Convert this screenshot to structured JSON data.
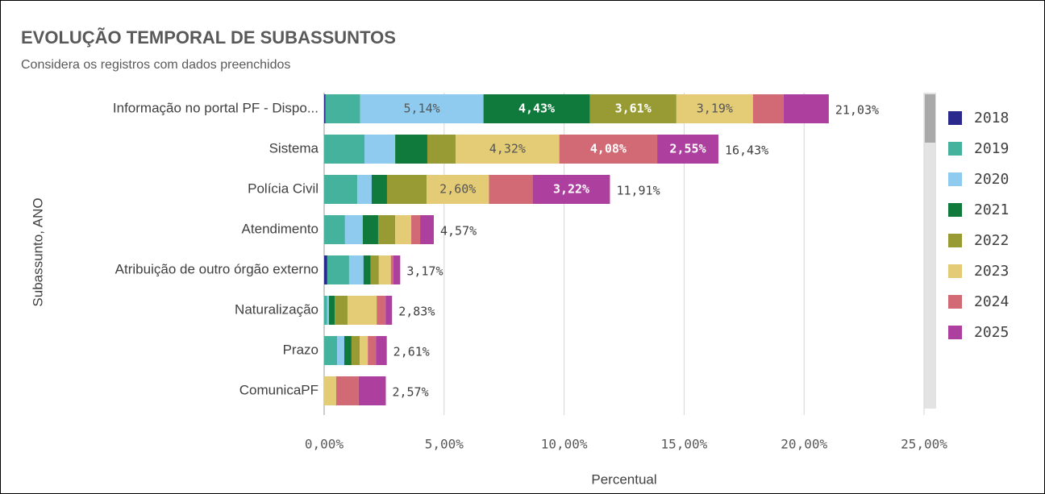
{
  "chart_data": {
    "type": "stacked-bar-horizontal",
    "title": "EVOLUÇÃO TEMPORAL DE SUBASSUNTOS",
    "subtitle": "Considera os registros com dados preenchidos",
    "x_label": "Percentual",
    "y_label": "Subassunto, ANO",
    "categories": [
      "Informação no portal PF - Dispo...",
      "Sistema",
      "Polícia Civil",
      "Atendimento",
      "Atribuição de outro órgão externo",
      "Naturalização",
      "Prazo",
      "ComunicaPF"
    ],
    "series": [
      {
        "name": "2018",
        "color": "#2b2a8c",
        "values": [
          0.05,
          0,
          0,
          0,
          0.13,
          0,
          0,
          0
        ],
        "value_labels": [
          null,
          null,
          null,
          null,
          null,
          null,
          null,
          null
        ]
      },
      {
        "name": "2019",
        "color": "#45b29d",
        "values": [
          1.45,
          1.68,
          1.38,
          0.87,
          0.91,
          0.12,
          0.54,
          0
        ],
        "value_labels": [
          null,
          null,
          null,
          null,
          null,
          null,
          null,
          null
        ]
      },
      {
        "name": "2020",
        "color": "#8ecbee",
        "values": [
          5.14,
          1.28,
          0.6,
          0.74,
          0.6,
          0.08,
          0.3,
          0
        ],
        "value_labels": [
          "5,14%",
          null,
          null,
          null,
          null,
          null,
          null,
          null
        ]
      },
      {
        "name": "2021",
        "color": "#107a3c",
        "values": [
          4.43,
          1.34,
          0.64,
          0.64,
          0.3,
          0.24,
          0.3,
          0
        ],
        "value_labels": [
          "4,43%",
          null,
          null,
          null,
          null,
          null,
          null,
          null
        ]
      },
      {
        "name": "2022",
        "color": "#989a33",
        "values": [
          3.61,
          1.18,
          1.65,
          0.71,
          0.34,
          0.54,
          0.34,
          0
        ],
        "value_labels": [
          "3,61%",
          null,
          null,
          null,
          null,
          null,
          null,
          null
        ]
      },
      {
        "name": "2023",
        "color": "#e4cc76",
        "values": [
          3.19,
          4.32,
          2.6,
          0.67,
          0.5,
          1.21,
          0.34,
          0.5
        ],
        "value_labels": [
          "3,19%",
          "4,32%",
          "2,60%",
          null,
          null,
          null,
          null,
          null
        ]
      },
      {
        "name": "2024",
        "color": "#d16a74",
        "values": [
          1.28,
          4.08,
          1.82,
          0.37,
          0.1,
          0.37,
          0.34,
          0.94
        ],
        "value_labels": [
          null,
          "4,08%",
          null,
          null,
          null,
          null,
          null,
          null
        ]
      },
      {
        "name": "2025",
        "color": "#ad3f9e",
        "values": [
          1.88,
          2.55,
          3.22,
          0.57,
          0.29,
          0.27,
          0.45,
          1.13
        ],
        "value_labels": [
          null,
          "2,55%",
          "3,22%",
          null,
          null,
          null,
          null,
          null
        ]
      }
    ],
    "totals": [
      21.03,
      16.43,
      11.91,
      4.57,
      3.17,
      2.83,
      2.61,
      2.57
    ],
    "total_labels": [
      "21,03%",
      "16,43%",
      "11,91%",
      "4,57%",
      "3,17%",
      "2,83%",
      "2,61%",
      "2,57%"
    ],
    "xlim": [
      0,
      25
    ],
    "xticks": [
      {
        "value": 0,
        "label": "0,00%"
      },
      {
        "value": 5,
        "label": "5,00%"
      },
      {
        "value": 10,
        "label": "10,00%"
      },
      {
        "value": 15,
        "label": "15,00%"
      },
      {
        "value": 20,
        "label": "20,00%"
      },
      {
        "value": 25,
        "label": "25,00%"
      }
    ],
    "grid": true,
    "legend": "right"
  }
}
